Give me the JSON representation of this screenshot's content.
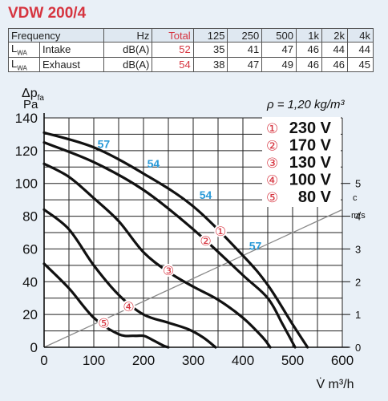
{
  "header": {
    "title": "VDW 200/4"
  },
  "sound_table": {
    "columns": [
      "Frequency",
      "Hz",
      "Total",
      "125",
      "250",
      "500",
      "1k",
      "2k",
      "4k"
    ],
    "rows": [
      {
        "symbol": "L",
        "symbol_sub": "WA",
        "label": "Intake",
        "unit": "dB(A)",
        "total": "52",
        "values": [
          "35",
          "41",
          "47",
          "46",
          "44",
          "44"
        ]
      },
      {
        "symbol": "L",
        "symbol_sub": "WA",
        "label": "Exhaust",
        "unit": "dB(A)",
        "total": "54",
        "values": [
          "38",
          "47",
          "49",
          "46",
          "46",
          "45"
        ]
      }
    ]
  },
  "chart_data": {
    "type": "line",
    "xlabel": "V̇ m³/h",
    "ylabel": "Δp",
    "ylabel_sub": "fa",
    "ylabel_unit": "Pa",
    "density_note": "ρ = 1,20 kg/m³",
    "xlim": [
      0,
      600
    ],
    "ylim": [
      0,
      140
    ],
    "x_ticks": [
      "0",
      "100",
      "200",
      "300",
      "400",
      "500",
      "600"
    ],
    "y_ticks": [
      "0",
      "20",
      "40",
      "60",
      "80",
      "100",
      "120",
      "140"
    ],
    "grid": true,
    "legend_position": "top-right",
    "series": [
      {
        "name": "230 V",
        "marker": "①",
        "x": [
          0,
          100,
          200,
          300,
          400,
          450,
          500,
          530
        ],
        "y": [
          131,
          122,
          106,
          86,
          56,
          38,
          14,
          0
        ]
      },
      {
        "name": "170 V",
        "marker": "②",
        "x": [
          0,
          100,
          200,
          300,
          400,
          450,
          480,
          505
        ],
        "y": [
          125,
          113,
          96,
          72,
          44,
          30,
          14,
          0
        ]
      },
      {
        "name": "130 V",
        "marker": "③",
        "x": [
          0,
          50,
          100,
          150,
          200,
          250,
          300,
          350,
          400,
          440,
          455
        ],
        "y": [
          112,
          104,
          91,
          77,
          58,
          46,
          37,
          29,
          18,
          6,
          0
        ]
      },
      {
        "name": "100 V",
        "marker": "④",
        "x": [
          0,
          50,
          100,
          150,
          200,
          250,
          290,
          320,
          345
        ],
        "y": [
          84,
          72,
          50,
          32,
          20,
          15,
          11,
          6,
          0
        ]
      },
      {
        "name": "80 V",
        "marker": "⑤",
        "x": [
          0,
          50,
          100,
          150,
          180,
          200,
          215,
          240,
          250
        ],
        "y": [
          51,
          36,
          18,
          8,
          7,
          7,
          5,
          1,
          0
        ]
      }
    ],
    "curve_markers": [
      {
        "label": "①",
        "x": 355,
        "y": 71
      },
      {
        "label": "②",
        "x": 325,
        "y": 65
      },
      {
        "label": "③",
        "x": 250,
        "y": 47
      },
      {
        "label": "④",
        "x": 170,
        "y": 25
      },
      {
        "label": "⑤",
        "x": 120,
        "y": 15
      }
    ],
    "sound_labels": [
      {
        "text": "57",
        "x": 120,
        "y": 124
      },
      {
        "text": "54",
        "x": 220,
        "y": 112
      },
      {
        "text": "54",
        "x": 325,
        "y": 93
      },
      {
        "text": "57",
        "x": 425,
        "y": 62
      }
    ],
    "velocity_axis": {
      "label": "c",
      "unit": "m/s",
      "ticks": [
        "0",
        "1",
        "2",
        "3",
        "4",
        "5"
      ],
      "line_x": [
        0,
        600
      ],
      "line_y_ms": [
        0,
        4.2
      ]
    },
    "colors": {
      "curve": "#111111",
      "marker": "#d6343f",
      "sound_label": "#2a9ad8",
      "velocity_line": "#8a8a8a",
      "grid": "#222222"
    }
  }
}
